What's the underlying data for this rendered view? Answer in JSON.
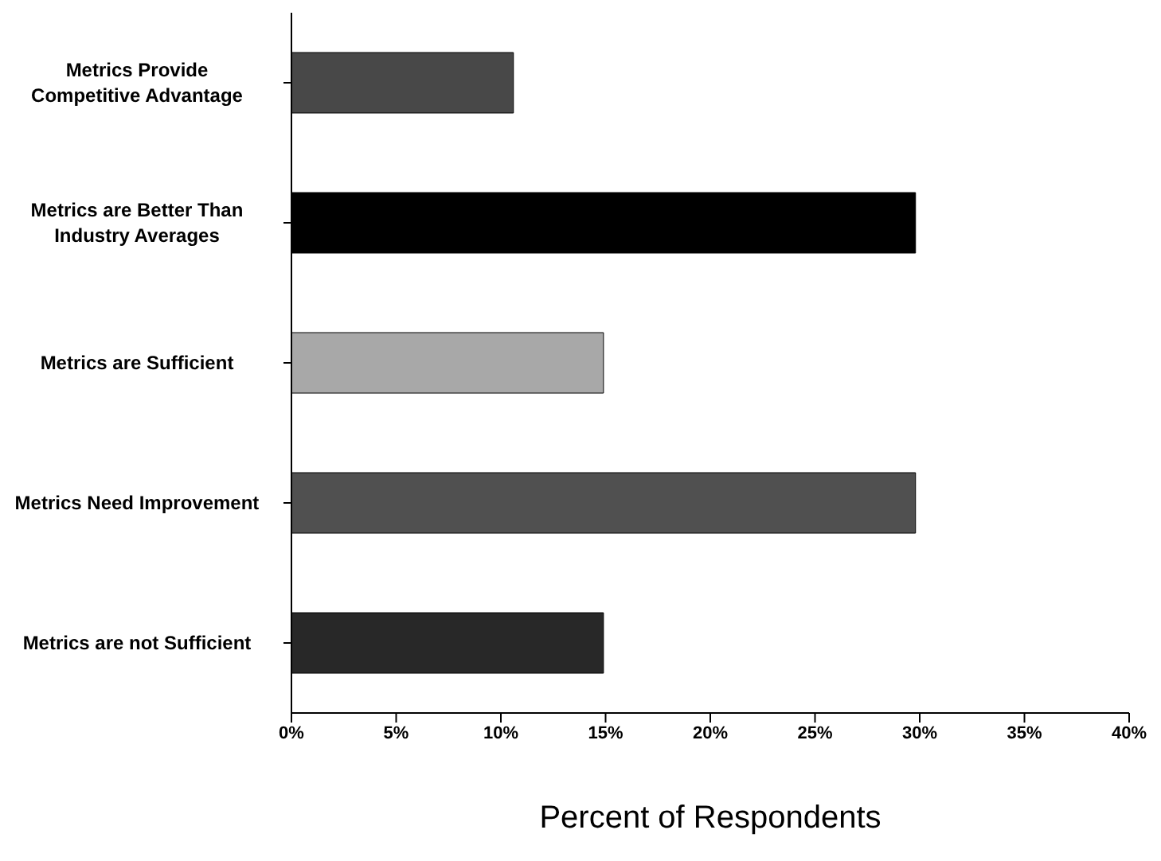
{
  "chart_data": {
    "type": "bar",
    "orientation": "horizontal",
    "categories": [
      "Metrics Provide Competitive Advantage",
      "Metrics are Better Than Industry Averages",
      "Metrics are Sufficient",
      "Metrics Need Improvement",
      "Metrics are not Sufficient"
    ],
    "values": [
      10.6,
      29.8,
      14.9,
      29.8,
      14.9
    ],
    "colors": [
      "#484848",
      "#000000",
      "#a8a8a8",
      "#505050",
      "#282828"
    ],
    "xlim": [
      0,
      40
    ],
    "xticks": [
      {
        "value": 0,
        "label": "0%"
      },
      {
        "value": 5,
        "label": "5%"
      },
      {
        "value": 10,
        "label": "10%"
      },
      {
        "value": 15,
        "label": "15%"
      },
      {
        "value": 20,
        "label": "20%"
      },
      {
        "value": 25,
        "label": "25%"
      },
      {
        "value": 30,
        "label": "30%"
      },
      {
        "value": 35,
        "label": "35%"
      },
      {
        "value": 40,
        "label": "40%"
      }
    ],
    "xlabel": "Percent of Respondents",
    "grid": false
  }
}
